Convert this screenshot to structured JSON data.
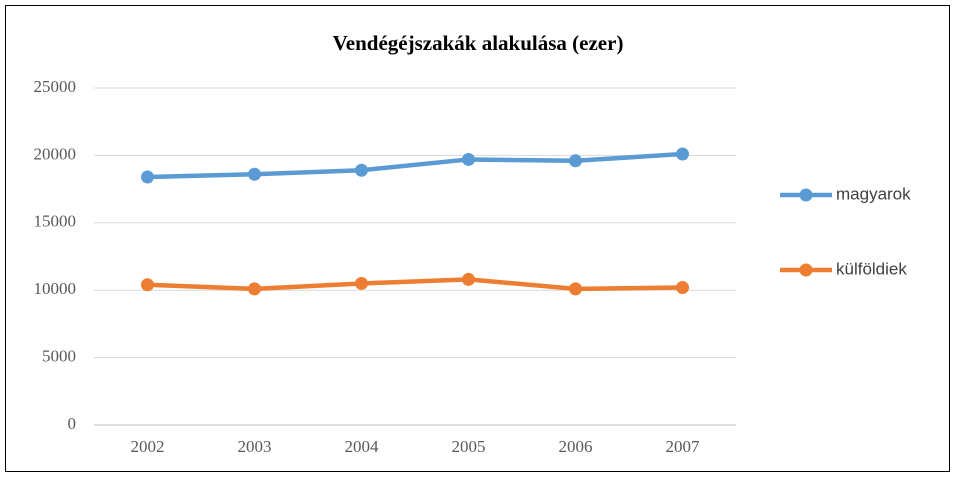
{
  "chart_data": {
    "type": "line",
    "title": "Vendégéjszakák alakulása (ezer)",
    "categories": [
      "2002",
      "2003",
      "2004",
      "2005",
      "2006",
      "2007"
    ],
    "series": [
      {
        "name": "magyarok",
        "color": "#5b9bd5",
        "values": [
          18400,
          18600,
          18900,
          19700,
          19600,
          20100
        ]
      },
      {
        "name": "külföldiek",
        "color": "#ed7d31",
        "values": [
          10400,
          10100,
          10500,
          10800,
          10100,
          10200
        ]
      }
    ],
    "ylim": [
      0,
      25000
    ],
    "yticks": [
      0,
      5000,
      10000,
      15000,
      20000,
      25000
    ],
    "grid": true,
    "legend": "right"
  }
}
